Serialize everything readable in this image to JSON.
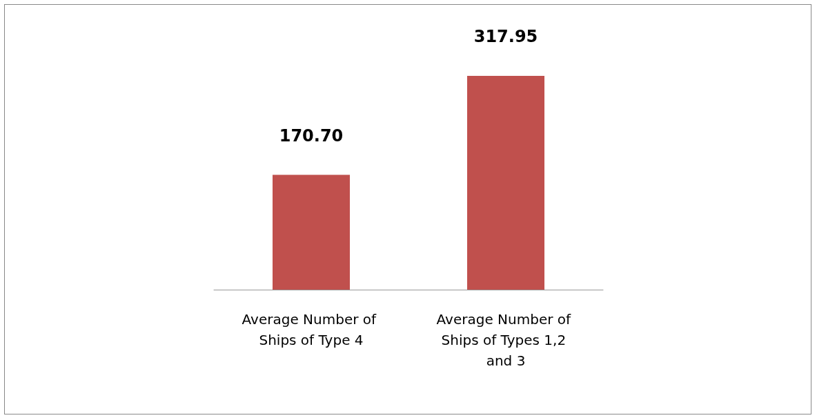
{
  "chart_data": {
    "type": "bar",
    "categories": [
      "Average Number of Ships of Type 4",
      "Average Number of Ships of Types 1,2 and 3"
    ],
    "values": [
      170.7,
      317.95
    ],
    "color": "#c0504d",
    "data_labels": true,
    "value_labels": [
      "170.70",
      "317.95"
    ]
  }
}
